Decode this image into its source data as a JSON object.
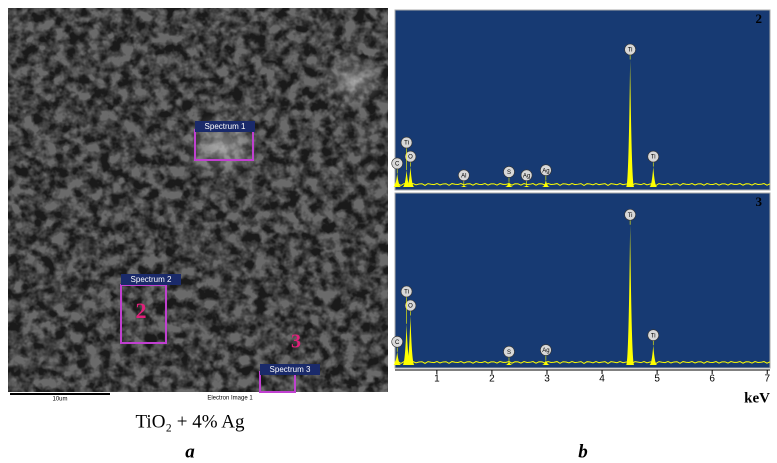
{
  "panel_a": {
    "spectrum_labels": [
      "Spectrum 1",
      "Spectrum 2",
      "Spectrum 3"
    ],
    "markers": [
      "2",
      "3"
    ],
    "scale_bar": "10um",
    "image_name": "Electron Image 1",
    "caption": "TiO₂ + 4%  Ag",
    "letter": "a"
  },
  "panel_b": {
    "xlim": [
      0.24,
      7.05
    ],
    "xticks": [
      1,
      2,
      3,
      4,
      5,
      6,
      7
    ],
    "xlabel": "keV",
    "letter": "b",
    "spectra": [
      {
        "name": "2",
        "peaks": [
          {
            "element": "C",
            "x": 0.28,
            "height": 8
          },
          {
            "element": "O",
            "x": 0.52,
            "height": 12
          },
          {
            "element": "Ti",
            "x": 0.45,
            "height": 10
          },
          {
            "element": "Al",
            "x": 1.49,
            "height": 1
          },
          {
            "element": "S",
            "x": 2.31,
            "height": 3
          },
          {
            "element": "Ag",
            "x": 2.63,
            "height": 1
          },
          {
            "element": "Ag",
            "x": 2.98,
            "height": 4
          },
          {
            "element": "Ti",
            "x": 4.51,
            "height": 75
          },
          {
            "element": "Ti",
            "x": 4.93,
            "height": 12
          }
        ]
      },
      {
        "name": "3",
        "peaks": [
          {
            "element": "C",
            "x": 0.28,
            "height": 8
          },
          {
            "element": "O",
            "x": 0.52,
            "height": 30
          },
          {
            "element": "Ti",
            "x": 0.45,
            "height": 25
          },
          {
            "element": "S",
            "x": 2.31,
            "height": 2
          },
          {
            "element": "Ag",
            "x": 2.98,
            "height": 3
          },
          {
            "element": "Ti",
            "x": 4.51,
            "height": 85
          },
          {
            "element": "Ti",
            "x": 4.93,
            "height": 12
          }
        ]
      }
    ]
  }
}
